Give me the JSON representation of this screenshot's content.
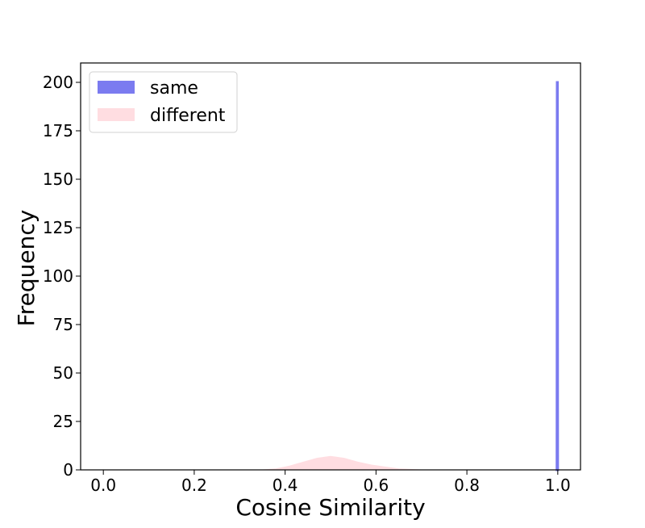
{
  "chart_data": {
    "type": "area",
    "title": "",
    "xlabel": "Cosine Similarity",
    "ylabel": "Frequency",
    "xlim": [
      -0.05,
      1.05
    ],
    "ylim": [
      0,
      210
    ],
    "xticks": [
      "0.0",
      "0.2",
      "0.4",
      "0.6",
      "0.8",
      "1.0"
    ],
    "yticks": [
      "0",
      "25",
      "50",
      "75",
      "100",
      "125",
      "150",
      "175",
      "200"
    ],
    "grid": false,
    "legend_position": "top-left",
    "series": [
      {
        "name": "same",
        "color": "#7b7bf0",
        "x": [
          0.998,
          0.9985,
          0.999,
          0.9995,
          1.0
        ],
        "y": [
          0,
          200,
          200,
          200,
          0
        ]
      },
      {
        "name": "different",
        "color": "#ffdde1",
        "x": [
          0.35,
          0.38,
          0.41,
          0.44,
          0.47,
          0.5,
          0.53,
          0.56,
          0.59,
          0.62,
          0.65,
          0.7
        ],
        "y": [
          0,
          0.5,
          2,
          4,
          6,
          7,
          6,
          4,
          2.5,
          1.5,
          0.5,
          0
        ]
      }
    ]
  }
}
